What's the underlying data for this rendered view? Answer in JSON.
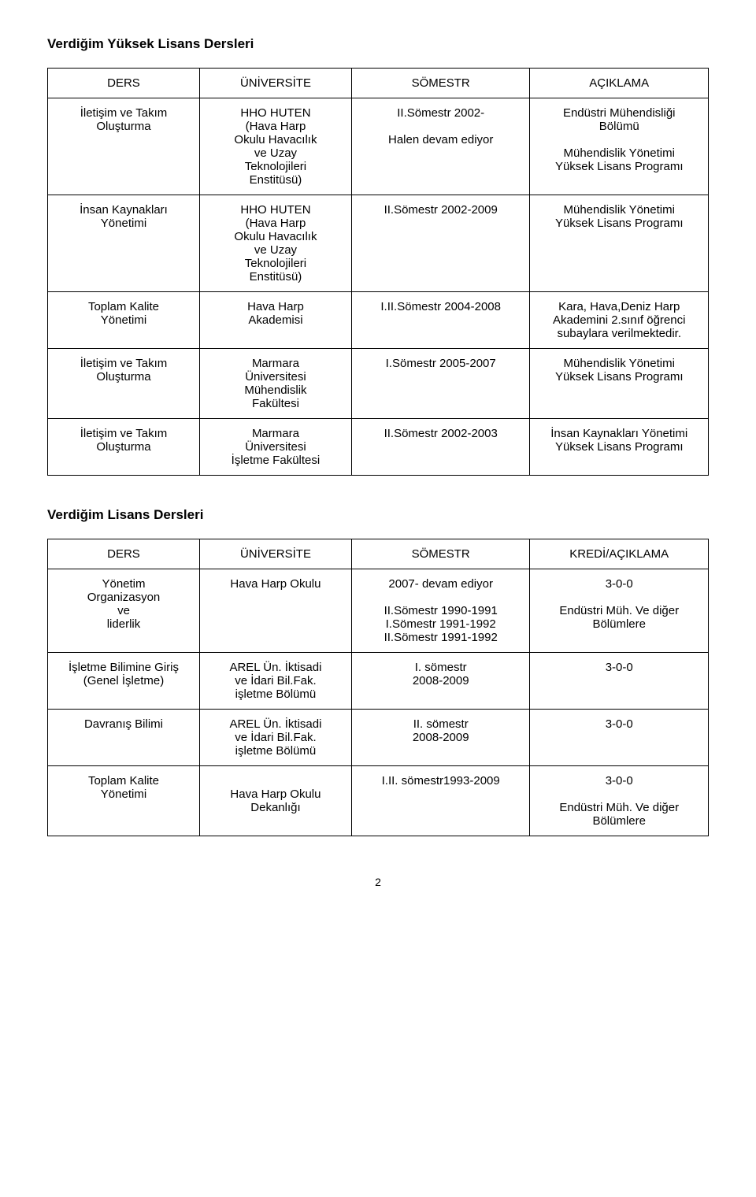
{
  "section1": {
    "title": "Verdiğim Yüksek Lisans Dersleri",
    "headers": [
      "DERS",
      "ÜNİVERSİTE",
      "SÖMESTR",
      "AÇIKLAMA"
    ],
    "rows": [
      {
        "c0": [
          "İletişim ve Takım",
          "Oluşturma"
        ],
        "c1": [
          "HHO HUTEN",
          "(Hava Harp",
          "Okulu Havacılık",
          "ve Uzay",
          "Teknolojileri",
          "Enstitüsü)"
        ],
        "c2": [
          "II.Sömestr 2002-",
          "",
          "Halen devam ediyor"
        ],
        "c3": [
          "Endüstri Mühendisliği",
          "Bölümü",
          "",
          "Mühendislik Yönetimi",
          "Yüksek Lisans Programı"
        ]
      },
      {
        "c0": [
          "İnsan Kaynakları",
          "Yönetimi"
        ],
        "c1": [
          "HHO HUTEN",
          "(Hava Harp",
          "Okulu Havacılık",
          "ve Uzay",
          "Teknolojileri",
          "Enstitüsü)"
        ],
        "c2": [
          "II.Sömestr 2002-2009"
        ],
        "c3": [
          "Mühendislik Yönetimi",
          "Yüksek Lisans Programı"
        ]
      },
      {
        "c0": [
          "Toplam Kalite",
          "Yönetimi"
        ],
        "c1": [
          "Hava Harp",
          "Akademisi"
        ],
        "c2": [
          "I.II.Sömestr 2004-2008"
        ],
        "c3": [
          "Kara, Hava,Deniz Harp",
          "Akademini 2.sınıf öğrenci",
          "subaylara verilmektedir."
        ]
      },
      {
        "c0": [
          "İletişim ve Takım",
          "Oluşturma"
        ],
        "c1": [
          "Marmara",
          "Üniversitesi",
          "Mühendislik",
          "Fakültesi"
        ],
        "c2": [
          "I.Sömestr 2005-2007"
        ],
        "c3": [
          "Mühendislik Yönetimi",
          "Yüksek Lisans Programı"
        ]
      },
      {
        "c0": [
          "İletişim ve Takım",
          "Oluşturma"
        ],
        "c1": [
          "Marmara",
          "Üniversitesi",
          "İşletme Fakültesi"
        ],
        "c2": [
          "II.Sömestr 2002-2003"
        ],
        "c3": [
          "İnsan Kaynakları Yönetimi",
          "Yüksek Lisans Programı"
        ]
      }
    ]
  },
  "section2": {
    "title": "Verdiğim Lisans Dersleri",
    "headers": [
      "DERS",
      "ÜNİVERSİTE",
      "SÖMESTR",
      "KREDİ/AÇIKLAMA"
    ],
    "rows": [
      {
        "c0": [
          "Yönetim",
          "Organizasyon",
          "ve",
          "liderlik"
        ],
        "c1": [
          "Hava Harp Okulu"
        ],
        "c2": [
          "2007- devam ediyor",
          "",
          "II.Sömestr 1990-1991",
          "I.Sömestr 1991-1992",
          "II.Sömestr 1991-1992"
        ],
        "c3": [
          "3-0-0",
          "",
          "Endüstri Müh. Ve diğer",
          "Bölümlere"
        ]
      },
      {
        "c0": [
          "İşletme Bilimine Giriş",
          "(Genel İşletme)"
        ],
        "c1": [
          "AREL Ün. İktisadi",
          "ve İdari Bil.Fak.",
          "işletme Bölümü"
        ],
        "c2": [
          "I. sömestr",
          "2008-2009"
        ],
        "c3": [
          "3-0-0"
        ]
      },
      {
        "c0": [
          "Davranış Bilimi"
        ],
        "c1": [
          "AREL Ün. İktisadi",
          "ve İdari Bil.Fak.",
          "işletme Bölümü"
        ],
        "c2": [
          "II. sömestr",
          "2008-2009"
        ],
        "c3": [
          "3-0-0"
        ]
      },
      {
        "c0": [
          "Toplam Kalite",
          "Yönetimi"
        ],
        "c1": [
          "",
          "Hava Harp Okulu",
          "Dekanlığı"
        ],
        "c2": [
          "I.II. sömestr1993-2009"
        ],
        "c3": [
          "3-0-0",
          "",
          "Endüstri Müh. Ve diğer",
          "Bölümlere"
        ]
      }
    ]
  },
  "pageNumber": "2",
  "layout": {
    "col_widths": [
      "23%",
      "23%",
      "27%",
      "27%"
    ]
  }
}
